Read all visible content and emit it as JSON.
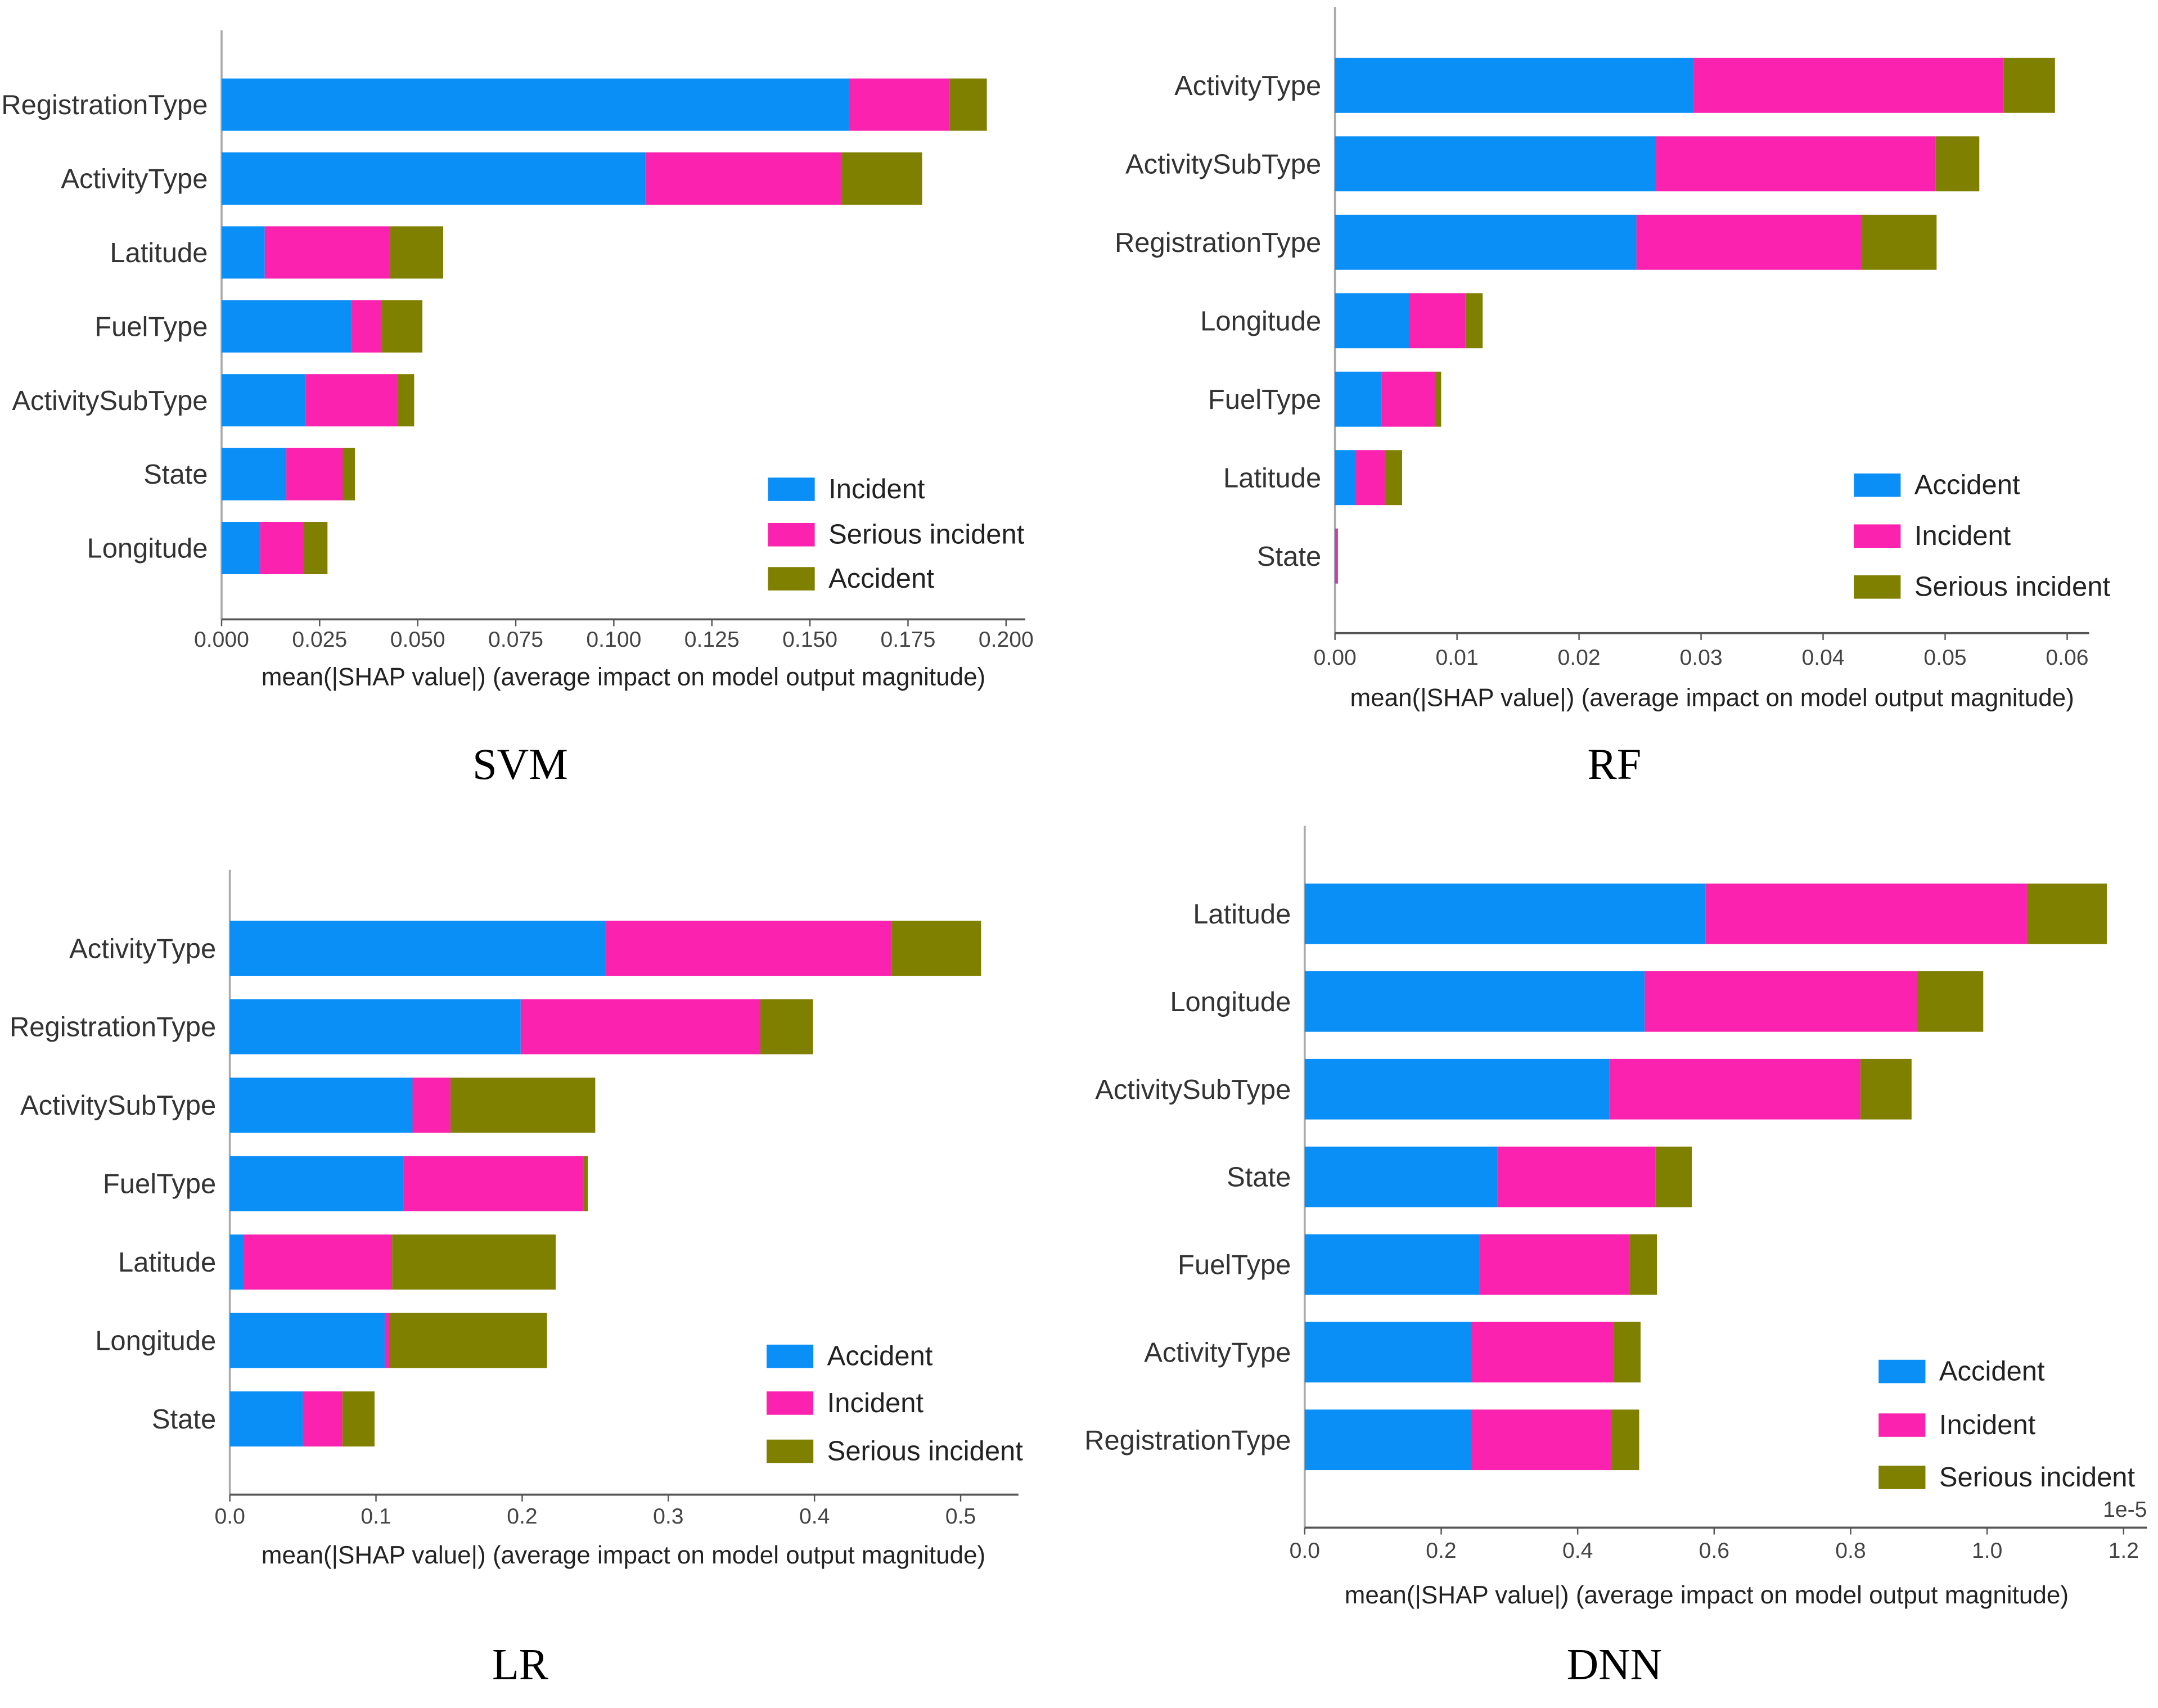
{
  "colors": {
    "blue": "#0a8ff7",
    "pink": "#fa22ae",
    "olive": "#7f8000"
  },
  "chart_data": [
    {
      "type": "bar",
      "stacked": true,
      "orientation": "horizontal",
      "title": "SVM",
      "xlabel": "mean(|SHAP value|) (average impact on model output magnitude)",
      "xlim": [
        0,
        0.2
      ],
      "ticks": [
        "0.000",
        "0.025",
        "0.050",
        "0.075",
        "0.100",
        "0.125",
        "0.150",
        "0.175",
        "0.200"
      ],
      "categories": [
        "RegistrationType",
        "ActivityType",
        "Latitude",
        "FuelType",
        "ActivitySubType",
        "State",
        "Longitude"
      ],
      "series": [
        {
          "name": "Incident",
          "color": "blue",
          "values": [
            0.16,
            0.108,
            0.011,
            0.033,
            0.0214,
            0.0165,
            0.0098
          ]
        },
        {
          "name": "Serious incident",
          "color": "pink",
          "values": [
            0.0256,
            0.05,
            0.032,
            0.0077,
            0.0235,
            0.0144,
            0.0112
          ]
        },
        {
          "name": "Accident",
          "color": "olive",
          "values": [
            0.0095,
            0.0206,
            0.0135,
            0.0105,
            0.0042,
            0.0031,
            0.006
          ]
        }
      ],
      "legend": "bottom-right"
    },
    {
      "type": "bar",
      "stacked": true,
      "orientation": "horizontal",
      "title": "RF",
      "xlabel": "mean(|SHAP value|) (average impact on model output magnitude)",
      "xlim": [
        0,
        0.06
      ],
      "ticks": [
        "0.00",
        "0.01",
        "0.02",
        "0.03",
        "0.04",
        "0.05",
        "0.06"
      ],
      "categories": [
        "ActivityType",
        "ActivitySubType",
        "RegistrationType",
        "Longitude",
        "FuelType",
        "Latitude",
        "State"
      ],
      "series": [
        {
          "name": "Accident",
          "color": "blue",
          "values": [
            0.0294,
            0.0263,
            0.0247,
            0.0061,
            0.0038,
            0.0017,
            0.0001
          ]
        },
        {
          "name": "Incident",
          "color": "pink",
          "values": [
            0.0254,
            0.0229,
            0.0185,
            0.0046,
            0.0044,
            0.0024,
            5e-05
          ]
        },
        {
          "name": "Serious incident",
          "color": "olive",
          "values": [
            0.0042,
            0.0036,
            0.0061,
            0.0014,
            0.0005,
            0.0014,
            5e-05
          ]
        }
      ],
      "legend": "bottom-right"
    },
    {
      "type": "bar",
      "stacked": true,
      "orientation": "horizontal",
      "title": "LR",
      "xlabel": "mean(|SHAP value|) (average impact on model output magnitude)",
      "xlim": [
        0,
        0.5
      ],
      "ticks": [
        "0.0",
        "0.1",
        "0.2",
        "0.3",
        "0.4",
        "0.5"
      ],
      "categories": [
        "ActivityType",
        "RegistrationType",
        "ActivitySubType",
        "FuelType",
        "Latitude",
        "Longitude",
        "State"
      ],
      "series": [
        {
          "name": "Accident",
          "color": "blue",
          "values": [
            0.257,
            0.199,
            0.125,
            0.119,
            0.009,
            0.106,
            0.05
          ]
        },
        {
          "name": "Incident",
          "color": "pink",
          "values": [
            0.196,
            0.164,
            0.026,
            0.123,
            0.102,
            0.003,
            0.027
          ]
        },
        {
          "name": "Serious incident",
          "color": "olive",
          "values": [
            0.061,
            0.036,
            0.099,
            0.003,
            0.112,
            0.108,
            0.022
          ]
        }
      ],
      "legend": "bottom-right"
    },
    {
      "type": "bar",
      "stacked": true,
      "orientation": "horizontal",
      "title": "DNN",
      "xlabel": "mean(|SHAP value|) (average impact on model output magnitude)",
      "scale_note": "1e-5",
      "xlim": [
        0,
        1.2
      ],
      "ticks": [
        "0.0",
        "0.2",
        "0.4",
        "0.6",
        "0.8",
        "1.0",
        "1.2"
      ],
      "categories": [
        "Latitude",
        "Longitude",
        "ActivitySubType",
        "State",
        "FuelType",
        "ActivityType",
        "RegistrationType"
      ],
      "series": [
        {
          "name": "Accident",
          "color": "blue",
          "values": [
            0.587,
            0.498,
            0.446,
            0.282,
            0.256,
            0.244,
            0.244
          ]
        },
        {
          "name": "Incident",
          "color": "pink",
          "values": [
            0.471,
            0.399,
            0.368,
            0.232,
            0.22,
            0.208,
            0.206
          ]
        },
        {
          "name": "Serious incident",
          "color": "olive",
          "values": [
            0.117,
            0.097,
            0.075,
            0.053,
            0.04,
            0.04,
            0.04
          ]
        }
      ],
      "legend": "bottom-right"
    }
  ]
}
